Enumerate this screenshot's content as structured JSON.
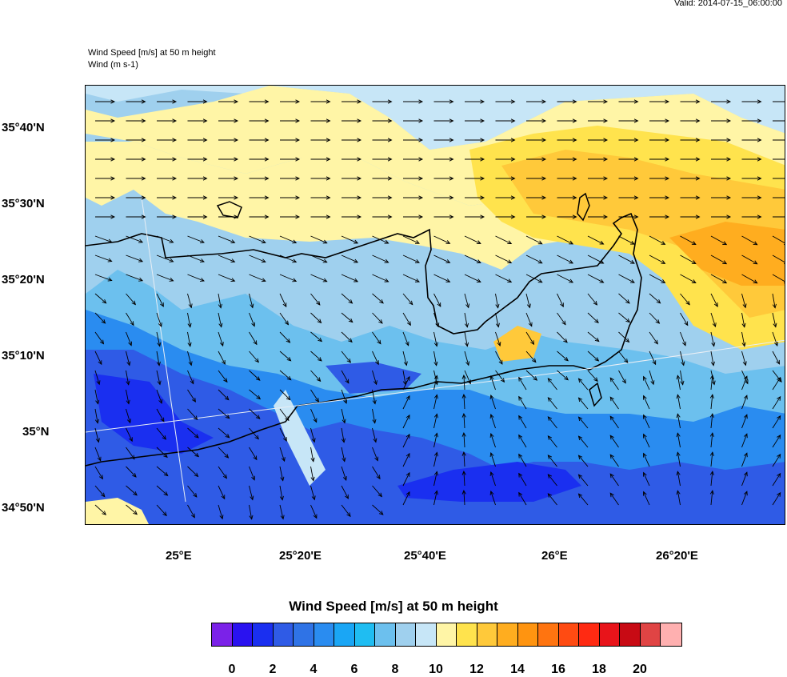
{
  "header": {
    "valid": "Valid: 2014-07-15_06:00:00",
    "title_line1": "Wind Speed [m/s] at 50 m height",
    "title_line2": "Wind   (m s-1)"
  },
  "axes": {
    "lat_labels": [
      "35°40'N",
      "35°30'N",
      "35°20'N",
      "35°10'N",
      "35°N",
      "34°50'N"
    ],
    "lon_labels": [
      "25°E",
      "25°20'E",
      "25°40'E",
      "26°E",
      "26°20'E"
    ]
  },
  "colorbar": {
    "title": "Wind Speed [m/s] at 50 m height",
    "labels": [
      "0",
      "2",
      "4",
      "6",
      "8",
      "10",
      "12",
      "14",
      "16",
      "18",
      "20"
    ],
    "colors": [
      "#7b22e8",
      "#2a12f0",
      "#1a2ff0",
      "#2f5be6",
      "#2f73e6",
      "#2a8cf0",
      "#1aa6f5",
      "#1fbdf2",
      "#6cc0ee",
      "#9fd0ee",
      "#c7e6f7",
      "#fff5a6",
      "#ffe34d",
      "#ffc93a",
      "#ffad1f",
      "#ff9410",
      "#ff7410",
      "#ff4b12",
      "#ff2a12",
      "#e8141a",
      "#c80a14",
      "#e04444"
    ]
  },
  "legend_colors": {
    "over": "#ffb0b0"
  }
}
